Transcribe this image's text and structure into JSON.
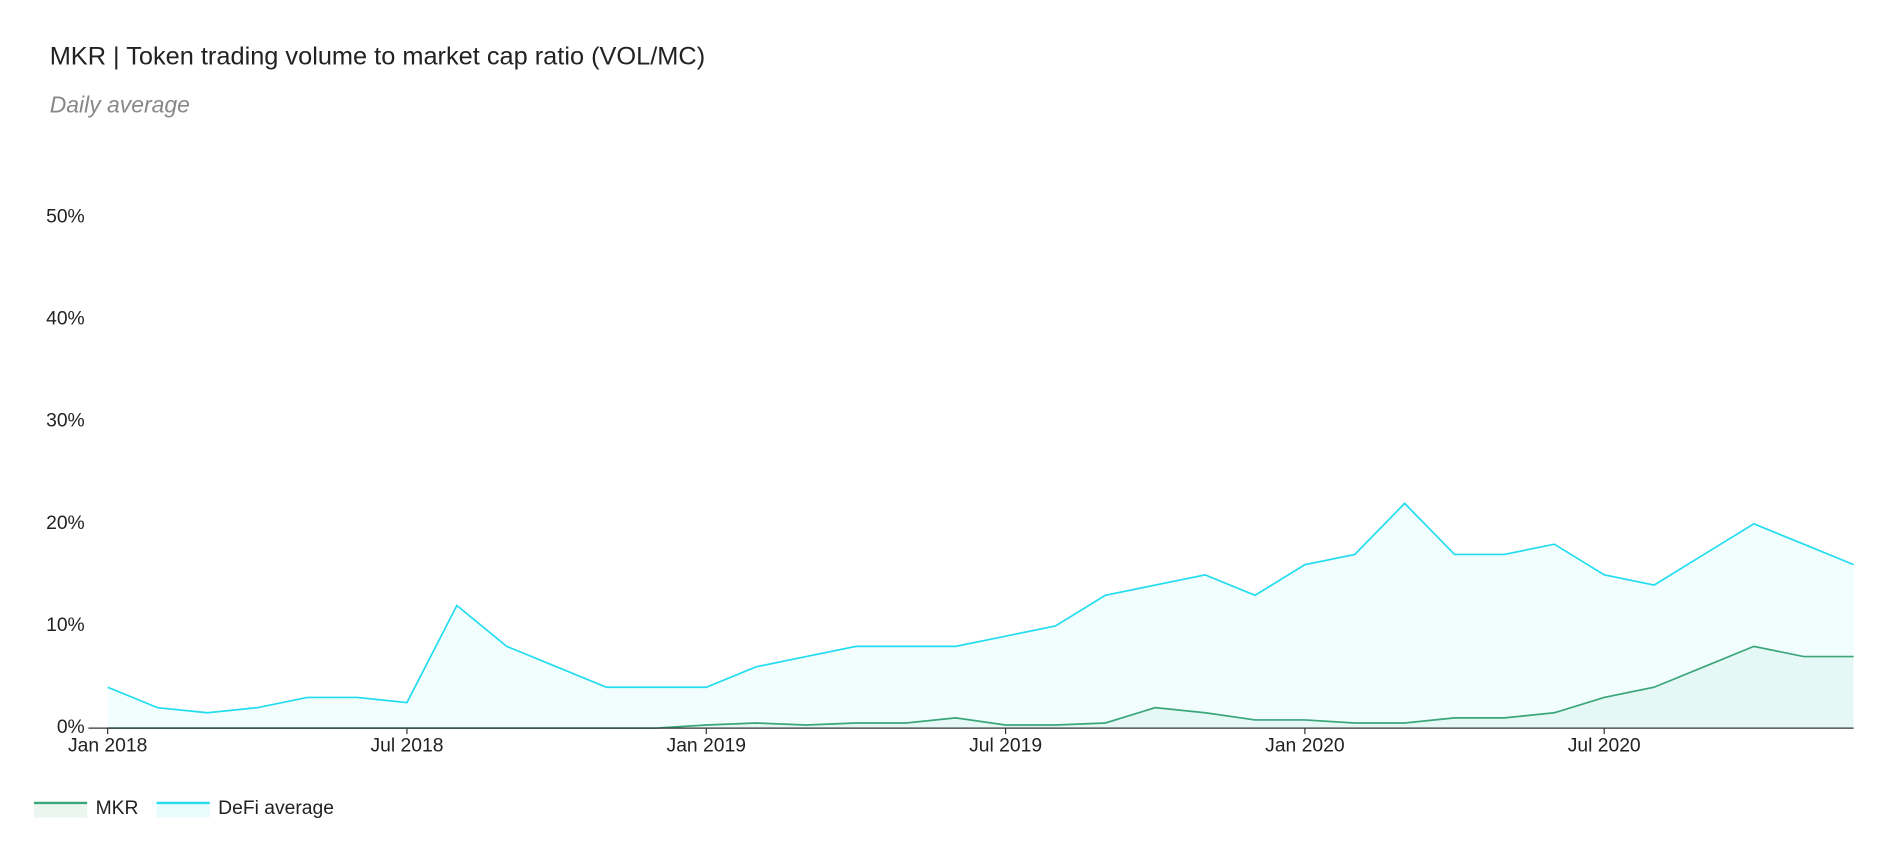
{
  "chart_data": {
    "type": "line",
    "title": "MKR | Token trading volume to market cap ratio (VOL/MC)",
    "subtitle": "Daily average",
    "x": [
      "2018-01",
      "2018-02",
      "2018-03",
      "2018-04",
      "2018-05",
      "2018-06",
      "2018-07",
      "2018-08",
      "2018-09",
      "2018-10",
      "2018-11",
      "2018-12",
      "2019-01",
      "2019-02",
      "2019-03",
      "2019-04",
      "2019-05",
      "2019-06",
      "2019-07",
      "2019-08",
      "2019-09",
      "2019-10",
      "2019-11",
      "2019-12",
      "2020-01",
      "2020-02",
      "2020-03",
      "2020-04",
      "2020-05",
      "2020-06",
      "2020-07",
      "2020-08",
      "2020-09",
      "2020-10",
      "2020-11",
      "2020-12"
    ],
    "series": [
      {
        "name": "MKR",
        "color": "#3aa67a",
        "values": [
          0,
          0,
          0,
          0,
          0,
          0,
          0,
          0,
          0,
          0,
          0,
          0,
          0.3,
          0.5,
          0.3,
          0.5,
          0.5,
          1,
          0.3,
          0.3,
          0.5,
          2,
          1.5,
          0.8,
          0.8,
          0.5,
          0.5,
          1,
          1,
          1.5,
          3,
          4,
          6,
          8,
          7,
          7
        ]
      },
      {
        "name": "DeFi average",
        "color": "#22dcef",
        "values": [
          4,
          2,
          1.5,
          2,
          3,
          3,
          2.5,
          12,
          8,
          6,
          4,
          4,
          4,
          6,
          7,
          8,
          8,
          8,
          9,
          10,
          13,
          14,
          15,
          13,
          16,
          17,
          22,
          17,
          17,
          18,
          15,
          14,
          17,
          20,
          18,
          16
        ]
      }
    ],
    "xlim": [
      "2018-01",
      "2020-12"
    ],
    "xticks": [
      {
        "value": "2018-01",
        "label": "Jan 2018"
      },
      {
        "value": "2018-07",
        "label": "Jul 2018"
      },
      {
        "value": "2019-01",
        "label": "Jan 2019"
      },
      {
        "value": "2019-07",
        "label": "Jul 2019"
      },
      {
        "value": "2020-01",
        "label": "Jan 2020"
      },
      {
        "value": "2020-07",
        "label": "Jul 2020"
      }
    ],
    "ylim": [
      0,
      50
    ],
    "yticks": [
      {
        "value": 0,
        "label": "0%"
      },
      {
        "value": 10,
        "label": "10%"
      },
      {
        "value": 20,
        "label": "20%"
      },
      {
        "value": 30,
        "label": "30%"
      },
      {
        "value": 40,
        "label": "40%"
      },
      {
        "value": 50,
        "label": "50%"
      }
    ],
    "legend": "bottom-left"
  }
}
